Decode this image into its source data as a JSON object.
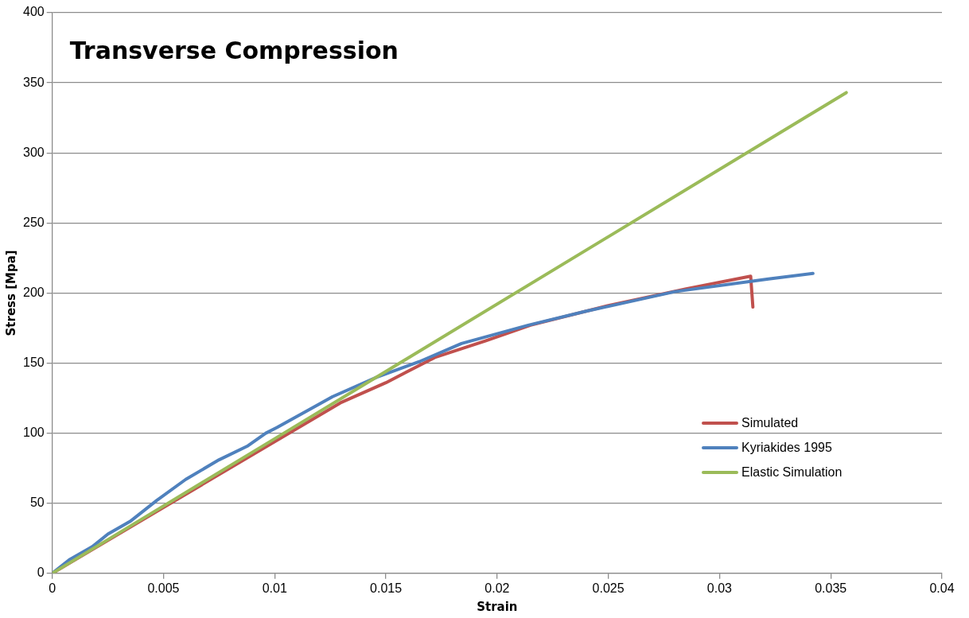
{
  "chart_data": {
    "type": "line",
    "title": "Transverse Compression",
    "xlabel": "Strain",
    "ylabel": "Stress [Mpa]",
    "xlim": [
      0,
      0.04
    ],
    "xticks": [
      0,
      0.005,
      0.01,
      0.015,
      0.02,
      0.025,
      0.03,
      0.035,
      0.04
    ],
    "ylim": [
      0,
      400
    ],
    "yticks": [
      0,
      50,
      100,
      150,
      200,
      250,
      300,
      350,
      400
    ],
    "grid": "y",
    "legend": "right",
    "marker": "none",
    "line_style": "solid",
    "series": [
      {
        "name": "Simulated",
        "color": "#c0504d",
        "x": [
          0,
          0.005,
          0.01,
          0.013,
          0.015,
          0.0172,
          0.0195,
          0.0215,
          0.025,
          0.0285,
          0.0314,
          0.0315
        ],
        "values": [
          0,
          47,
          94,
          122,
          136,
          154,
          166,
          177,
          191,
          203,
          212,
          190
        ]
      },
      {
        "name": "Kyriakides 1995",
        "color": "#4f81bd",
        "x": [
          0,
          0.0008,
          0.0018,
          0.0025,
          0.0035,
          0.0047,
          0.006,
          0.0075,
          0.0088,
          0.0096,
          0.0101,
          0.0126,
          0.0146,
          0.0165,
          0.0184,
          0.0214,
          0.024,
          0.028,
          0.0322,
          0.0342
        ],
        "values": [
          0,
          10,
          19,
          28,
          37,
          52,
          67,
          81,
          91,
          100,
          104,
          126,
          140,
          151,
          164,
          177,
          187,
          201,
          210,
          214
        ]
      },
      {
        "name": "Elastic Simulation",
        "color": "#9bbb59",
        "x": [
          0,
          0.01,
          0.0357
        ],
        "values": [
          0,
          96,
          343
        ]
      }
    ]
  }
}
